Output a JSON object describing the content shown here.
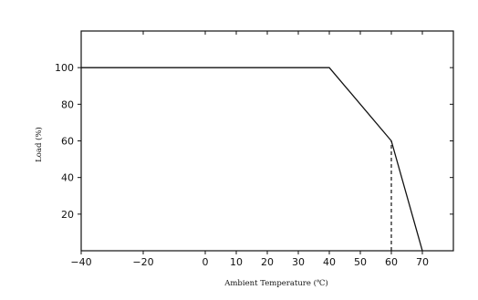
{
  "chart_data": {
    "type": "line",
    "title": "",
    "xlabel": "Ambient Temperature (℃)",
    "ylabel": "Load (%)",
    "xlim": [
      -40,
      80
    ],
    "ylim": [
      0,
      120
    ],
    "xticks": [
      -40,
      -20,
      0,
      10,
      20,
      30,
      40,
      50,
      60,
      70
    ],
    "yticks": [
      20,
      40,
      60,
      80,
      100
    ],
    "xtick_labels": [
      "−40",
      "−20",
      "0",
      "10",
      "20",
      "30",
      "40",
      "50",
      "60",
      "70"
    ],
    "ytick_labels": [
      "20",
      "40",
      "60",
      "80",
      "100"
    ],
    "grid": false,
    "series": [
      {
        "x": [
          -40,
          40,
          60,
          70
        ],
        "y": [
          100,
          100,
          60,
          0
        ]
      }
    ],
    "reference_lines": [
      {
        "style": "dashed",
        "x": [
          60,
          60
        ],
        "y": [
          0,
          60
        ]
      }
    ],
    "line_color": "#111111",
    "frame_color": "#111111"
  }
}
